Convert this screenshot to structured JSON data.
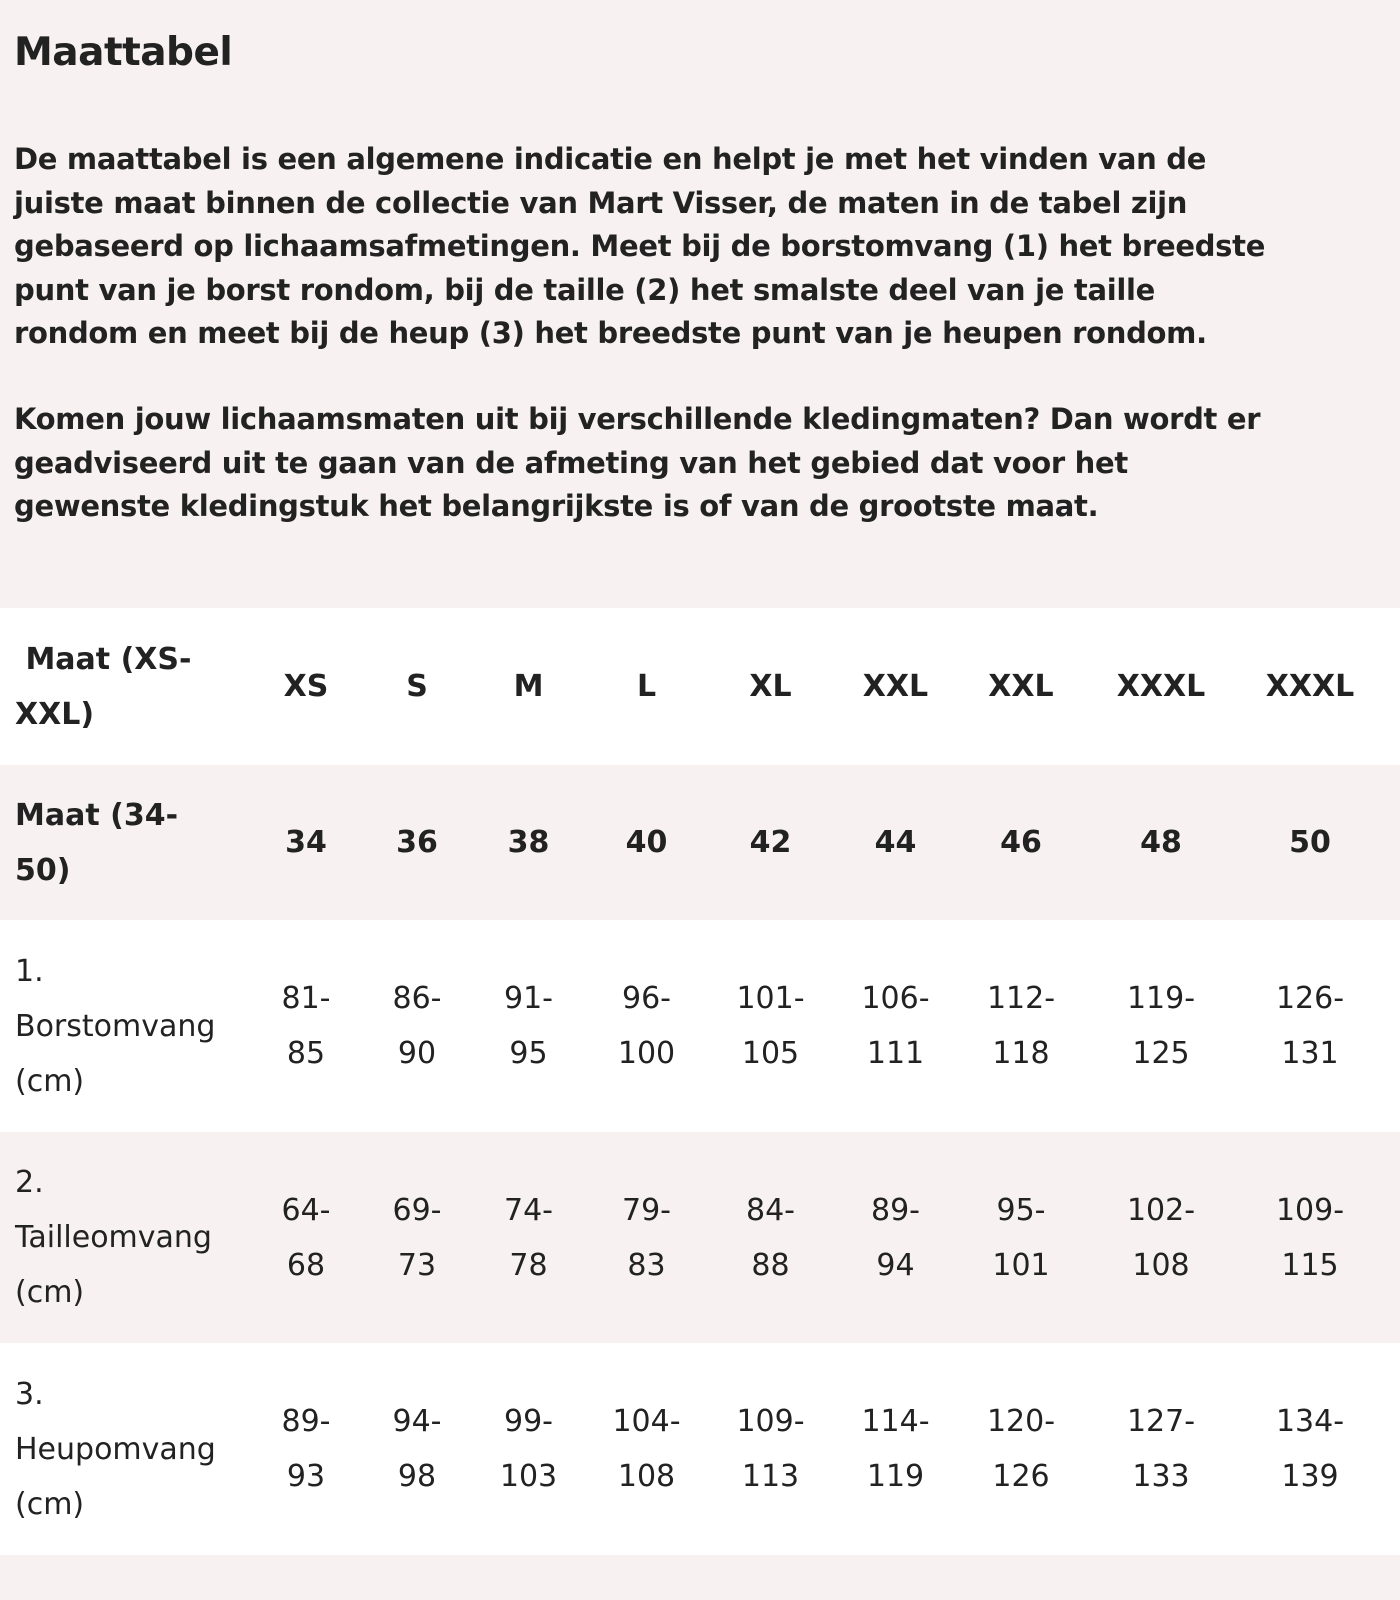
{
  "title": "Maattabel",
  "paragraph1": [
    "De maattabel is een algemene indicatie en helpt je met het vinden van de",
    "juiste maat binnen de collectie van Mart Visser, de maten in de tabel zijn",
    "gebaseerd op lichaamsafmetingen. Meet bij de borstomvang (1) het breedste",
    "punt van je borst rondom, bij de taille (2) het smalste deel van je taille",
    "rondom en meet bij de heup (3) het breedste punt van je heupen rondom."
  ],
  "paragraph2": [
    "Komen jouw lichaamsmaten uit bij verschillende kledingmaten? Dan wordt er",
    "geadviseerd uit te gaan van de afmeting van het gebied dat voor het",
    "gewenste kledingstuk het belangrijkste is of van de grootste maat."
  ],
  "table": {
    "rows": [
      {
        "label": [
          " Maat (XS-",
          "XXL)"
        ],
        "bold": true,
        "cells": [
          [
            "XS"
          ],
          [
            "S"
          ],
          [
            "M"
          ],
          [
            "L"
          ],
          [
            "XL"
          ],
          [
            "XXL"
          ],
          [
            "XXL"
          ],
          [
            "XXXL"
          ],
          [
            "XXXL"
          ]
        ]
      },
      {
        "label": [
          "Maat (34-",
          "50)"
        ],
        "bold": true,
        "cells": [
          [
            "34"
          ],
          [
            "36"
          ],
          [
            "38"
          ],
          [
            "40"
          ],
          [
            "42"
          ],
          [
            "44"
          ],
          [
            "46"
          ],
          [
            "48"
          ],
          [
            "50"
          ]
        ]
      },
      {
        "label": [
          "1.",
          "Borstomvang",
          "(cm)"
        ],
        "bold": false,
        "cells": [
          [
            "81-",
            "85"
          ],
          [
            "86-",
            "90"
          ],
          [
            "91-",
            "95"
          ],
          [
            "96-",
            "100"
          ],
          [
            "101-",
            "105"
          ],
          [
            "106-",
            "111"
          ],
          [
            "112-",
            "118"
          ],
          [
            "119-",
            "125"
          ],
          [
            "126-",
            "131"
          ]
        ]
      },
      {
        "label": [
          "2.",
          "Tailleomvang",
          "(cm)"
        ],
        "bold": false,
        "cells": [
          [
            "64-",
            "68"
          ],
          [
            "69-",
            "73"
          ],
          [
            "74-",
            "78"
          ],
          [
            "79-",
            "83"
          ],
          [
            "84-",
            "88"
          ],
          [
            "89-",
            "94"
          ],
          [
            "95-",
            "101"
          ],
          [
            "102-",
            "108"
          ],
          [
            "109-",
            "115"
          ]
        ]
      },
      {
        "label": [
          "3.",
          "Heupomvang",
          "(cm)"
        ],
        "bold": false,
        "cells": [
          [
            "89-",
            "93"
          ],
          [
            "94-",
            "98"
          ],
          [
            "99-",
            "103"
          ],
          [
            "104-",
            "108"
          ],
          [
            "109-",
            "113"
          ],
          [
            "114-",
            "119"
          ],
          [
            "120-",
            "126"
          ],
          [
            "127-",
            "133"
          ],
          [
            "134-",
            "139"
          ]
        ]
      }
    ]
  }
}
